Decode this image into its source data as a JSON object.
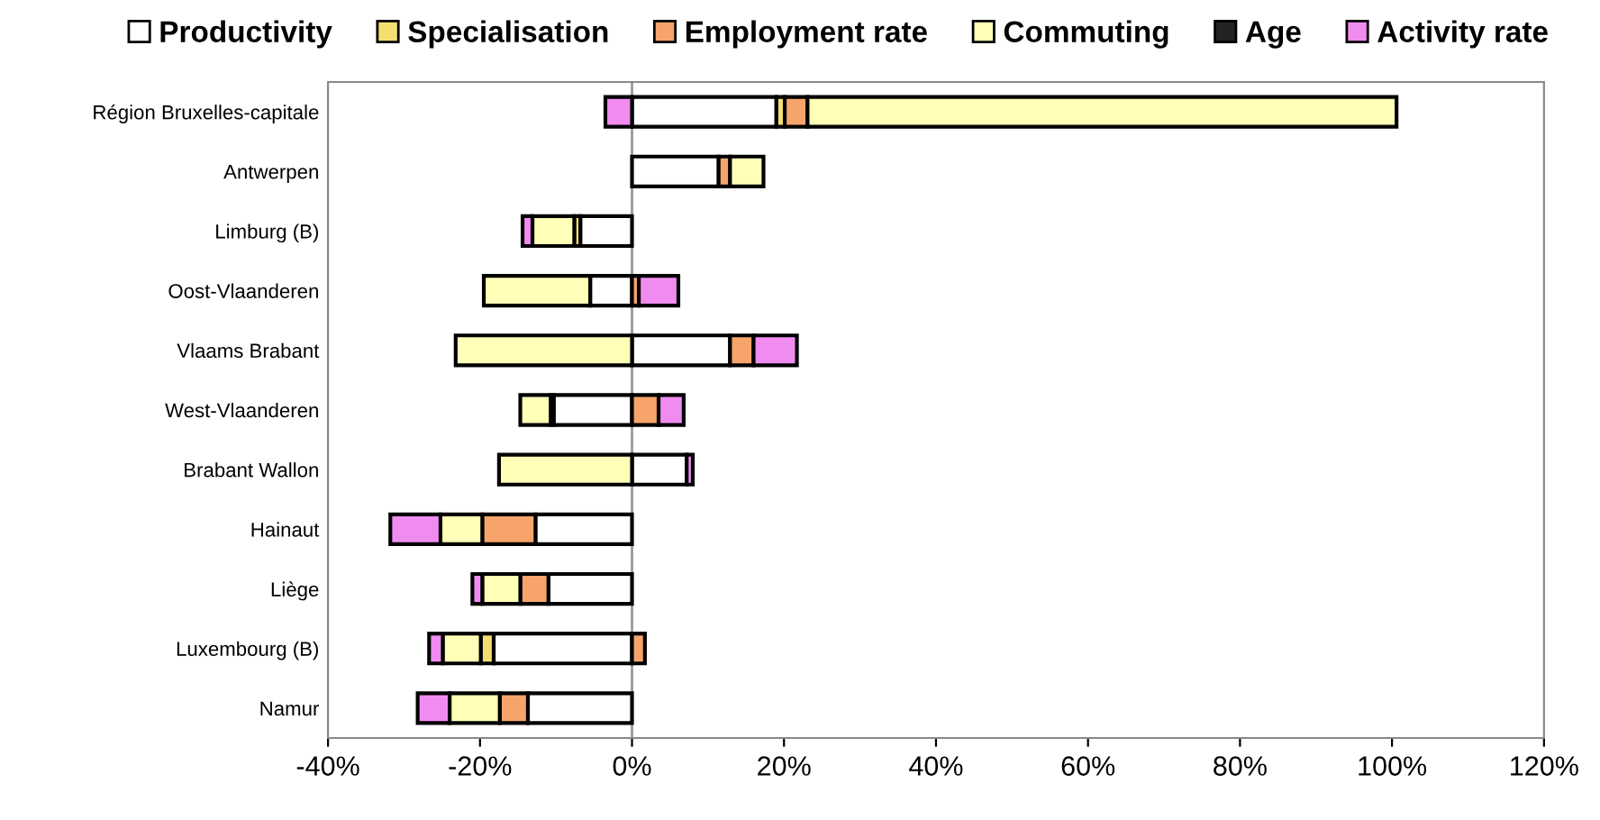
{
  "chart_data": {
    "type": "bar",
    "orientation": "horizontal",
    "stacked": true,
    "categories": [
      "Région Bruxelles-capitale",
      "Antwerpen",
      "Limburg (B)",
      "Oost-Vlaanderen",
      "Vlaams Brabant",
      "West-Vlaanderen",
      "Brabant Wallon",
      "Hainaut",
      "Liège",
      "Luxembourg (B)",
      "Namur"
    ],
    "series": [
      {
        "name": "Productivity",
        "color": "#ffffff",
        "values": [
          19,
          11.4,
          -6.8,
          -5.5,
          12.9,
          -10.3,
          7.2,
          -12.7,
          -11,
          -18.2,
          -13.7
        ]
      },
      {
        "name": "Specialisation",
        "color": "#f3df6f",
        "values": [
          1.1,
          null,
          -0.8,
          null,
          null,
          -0.4,
          null,
          null,
          null,
          -1.7,
          null
        ]
      },
      {
        "name": "Employment rate",
        "color": "#f7a46c",
        "values": [
          3,
          1.5,
          null,
          0.9,
          3.1,
          3.5,
          null,
          -7,
          -3.7,
          1.7,
          -3.7
        ]
      },
      {
        "name": "Commuting",
        "color": "#ffffb8",
        "values": [
          77.5,
          4.4,
          -5.5,
          -14,
          -23.2,
          -4,
          -17.5,
          -5.5,
          -5,
          -5,
          -6.6
        ]
      },
      {
        "name": "Age",
        "color": "#222222",
        "values": [
          null,
          null,
          null,
          null,
          null,
          null,
          null,
          null,
          null,
          null,
          null
        ]
      },
      {
        "name": "Activity rate",
        "color": "#f08cf0",
        "values": [
          -3.5,
          null,
          -1.3,
          5.2,
          5.7,
          3.3,
          0.8,
          -6.6,
          -1.3,
          -1.8,
          -4.2
        ]
      }
    ],
    "xlim": [
      -40,
      120
    ],
    "xticks": [
      {
        "value": -40,
        "label": "-40%"
      },
      {
        "value": -20,
        "label": "-20%"
      },
      {
        "value": 0,
        "label": "0%"
      },
      {
        "value": 20,
        "label": "20%"
      },
      {
        "value": 40,
        "label": "40%"
      },
      {
        "value": 60,
        "label": "60%"
      },
      {
        "value": 80,
        "label": "80%"
      },
      {
        "value": 100,
        "label": "100%"
      },
      {
        "value": 120,
        "label": "120%"
      }
    ],
    "ref_lines": [
      {
        "axis": "x",
        "value": 0,
        "color": "#999999"
      }
    ],
    "grid": false,
    "legend": "top"
  }
}
